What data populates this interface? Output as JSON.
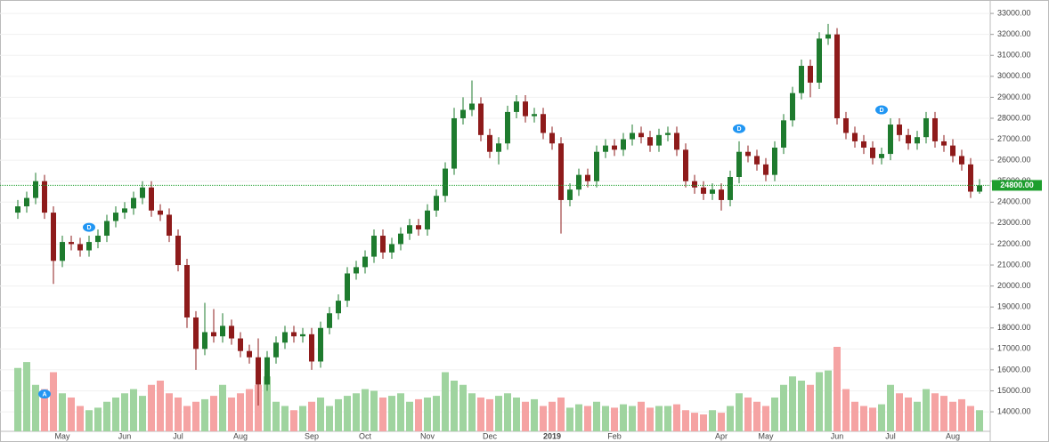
{
  "chart_data": {
    "type": "candlestick",
    "categories": [
      null,
      null,
      null,
      null,
      null,
      "May",
      null,
      null,
      null,
      null,
      null,
      null,
      "Jun",
      null,
      null,
      null,
      null,
      null,
      "Jul",
      null,
      null,
      null,
      null,
      null,
      null,
      "Aug",
      null,
      null,
      null,
      null,
      null,
      null,
      null,
      "Sep",
      null,
      null,
      null,
      null,
      null,
      "Oct",
      null,
      null,
      null,
      null,
      null,
      null,
      "Nov",
      null,
      null,
      null,
      null,
      null,
      null,
      "Dec",
      null,
      null,
      null,
      null,
      null,
      null,
      "2019",
      null,
      null,
      null,
      null,
      null,
      null,
      "Feb",
      null,
      null,
      null,
      null,
      null,
      null,
      null,
      null,
      null,
      null,
      null,
      "Apr",
      null,
      null,
      null,
      null,
      "May",
      null,
      null,
      null,
      null,
      null,
      null,
      null,
      "Jun",
      null,
      null,
      null,
      null,
      null,
      "Jul",
      null,
      null,
      null,
      null,
      null,
      null,
      "Aug",
      null,
      null,
      null
    ],
    "open": [
      23500,
      23800,
      24200,
      25000,
      23500,
      21200,
      22100,
      22000,
      21700,
      22100,
      22400,
      23100,
      23500,
      23700,
      24200,
      24700,
      23600,
      23400,
      22400,
      21000,
      18500,
      17000,
      17800,
      17600,
      18100,
      17500,
      16900,
      16600,
      15300,
      16600,
      17300,
      17800,
      17600,
      17700,
      16400,
      18000,
      18700,
      19300,
      20600,
      20900,
      21400,
      22400,
      21600,
      22000,
      22500,
      22900,
      22700,
      23600,
      24300,
      25600,
      28000,
      28400,
      28700,
      27200,
      26400,
      26800,
      28300,
      28800,
      28100,
      28200,
      27300,
      26800,
      24100,
      24600,
      25300,
      25000,
      26400,
      26700,
      26500,
      27000,
      27300,
      27100,
      26700,
      27200,
      27300,
      26500,
      25000,
      24700,
      24400,
      24600,
      24100,
      25200,
      26400,
      26200,
      25800,
      25300,
      26600,
      27900,
      29200,
      30500,
      29700,
      31800,
      32000,
      28000,
      27300,
      26900,
      26600,
      26100,
      26300,
      27700,
      27200,
      26800,
      27100,
      28000,
      26900,
      26700,
      26200,
      25800,
      24500
    ],
    "high": [
      24100,
      24500,
      25400,
      25300,
      23800,
      22400,
      22400,
      22300,
      22400,
      22700,
      23400,
      23800,
      24000,
      24500,
      25000,
      25000,
      23900,
      23700,
      22700,
      21300,
      18800,
      19200,
      18900,
      18700,
      18400,
      17800,
      17200,
      17500,
      16900,
      17600,
      18100,
      18100,
      18000,
      18000,
      18300,
      19000,
      19600,
      20900,
      21200,
      21700,
      22700,
      22700,
      22300,
      22800,
      23200,
      23200,
      23900,
      24600,
      25900,
      28500,
      29000,
      29800,
      29000,
      27500,
      27100,
      28600,
      29100,
      29100,
      28500,
      28500,
      27600,
      27100,
      24900,
      25600,
      25600,
      26700,
      27000,
      27000,
      27300,
      27700,
      27600,
      27400,
      27500,
      27600,
      27600,
      26800,
      25300,
      25000,
      24900,
      24900,
      25500,
      26900,
      26700,
      26500,
      26100,
      26900,
      28200,
      29500,
      30800,
      30800,
      32100,
      32500,
      32300,
      28300,
      27600,
      27200,
      26900,
      26600,
      28000,
      28000,
      27500,
      27400,
      28300,
      28300,
      27200,
      27000,
      26500,
      26100,
      25100
    ],
    "low": [
      23200,
      23500,
      23900,
      23200,
      20100,
      20900,
      21700,
      21400,
      21400,
      21800,
      22100,
      22800,
      23200,
      23400,
      23900,
      23300,
      23100,
      22100,
      20700,
      18000,
      16000,
      16700,
      17300,
      17300,
      17200,
      16600,
      16300,
      14300,
      15000,
      16300,
      17000,
      17300,
      17300,
      16000,
      16100,
      17700,
      18400,
      19000,
      20300,
      20600,
      21100,
      21300,
      21300,
      21700,
      22200,
      22400,
      22400,
      23300,
      24000,
      25300,
      27700,
      28100,
      26900,
      26100,
      25800,
      26500,
      28000,
      27800,
      27800,
      27000,
      26500,
      22500,
      23800,
      24300,
      24700,
      24700,
      26100,
      26200,
      26200,
      26700,
      26800,
      26400,
      26400,
      26900,
      26200,
      24700,
      24400,
      24100,
      24100,
      23600,
      23800,
      24900,
      25900,
      25500,
      25000,
      25000,
      26300,
      27600,
      28900,
      29000,
      29400,
      31500,
      27700,
      27000,
      26600,
      26300,
      25800,
      25800,
      26000,
      26900,
      26500,
      26500,
      26800,
      26600,
      26400,
      25900,
      25500,
      24200,
      24400
    ],
    "close": [
      23800,
      24200,
      25000,
      23500,
      21200,
      22100,
      22000,
      21700,
      22100,
      22400,
      23100,
      23500,
      23700,
      24200,
      24700,
      23600,
      23400,
      22400,
      21000,
      18500,
      17000,
      17800,
      17600,
      18100,
      17500,
      16900,
      16600,
      15300,
      16600,
      17300,
      17800,
      17600,
      17700,
      16400,
      18000,
      18700,
      19300,
      20600,
      20900,
      21400,
      22400,
      21600,
      22000,
      22500,
      22900,
      22700,
      23600,
      24300,
      25600,
      28000,
      28400,
      28700,
      27200,
      26400,
      26800,
      28300,
      28800,
      28100,
      28200,
      27300,
      26800,
      24100,
      24600,
      25300,
      25000,
      26400,
      26700,
      26500,
      27000,
      27300,
      27100,
      26700,
      27200,
      27300,
      26500,
      25000,
      24700,
      24400,
      24600,
      24100,
      25200,
      26400,
      26200,
      25800,
      25300,
      26600,
      27900,
      29200,
      30500,
      29700,
      31800,
      32000,
      28000,
      27300,
      26900,
      26600,
      26100,
      26300,
      27700,
      27200,
      26800,
      27100,
      28000,
      26900,
      26700,
      26200,
      25800,
      24500,
      24800
    ],
    "volume": [
      75,
      82,
      55,
      50,
      70,
      45,
      40,
      30,
      25,
      28,
      35,
      40,
      45,
      50,
      42,
      55,
      60,
      45,
      40,
      30,
      35,
      38,
      42,
      55,
      40,
      45,
      50,
      55,
      65,
      35,
      30,
      25,
      30,
      35,
      40,
      30,
      38,
      42,
      45,
      50,
      48,
      40,
      42,
      45,
      35,
      38,
      40,
      42,
      70,
      60,
      55,
      45,
      40,
      38,
      42,
      45,
      40,
      35,
      38,
      30,
      35,
      40,
      28,
      32,
      30,
      35,
      30,
      28,
      32,
      30,
      35,
      28,
      30,
      30,
      32,
      25,
      22,
      20,
      25,
      22,
      30,
      45,
      40,
      35,
      30,
      40,
      55,
      65,
      60,
      55,
      70,
      72,
      100,
      50,
      35,
      30,
      28,
      32,
      55,
      45,
      40,
      35,
      50,
      45,
      42,
      35,
      38,
      30,
      25
    ],
    "volume_lim": [
      0,
      100
    ],
    "up_color": "#1e7b2e",
    "down_color": "#8e1b1b",
    "volume_up_color": "#9fd49f",
    "volume_down_color": "#f5a3a3",
    "ylim": [
      13070,
      33640
    ],
    "yticks": [
      {
        "value": 14000,
        "label": "14000.00"
      },
      {
        "value": 15000,
        "label": "15000.00"
      },
      {
        "value": 16000,
        "label": "16000.00"
      },
      {
        "value": 17000,
        "label": "17000.00"
      },
      {
        "value": 18000,
        "label": "18000.00"
      },
      {
        "value": 19000,
        "label": "19000.00"
      },
      {
        "value": 20000,
        "label": "20000.00"
      },
      {
        "value": 21000,
        "label": "21000.00"
      },
      {
        "value": 22000,
        "label": "22000.00"
      },
      {
        "value": 23000,
        "label": "23000.00"
      },
      {
        "value": 24000,
        "label": "24000.00"
      },
      {
        "value": 25000,
        "label": "25000.00"
      },
      {
        "value": 26000,
        "label": "26000.00"
      },
      {
        "value": 27000,
        "label": "27000.00"
      },
      {
        "value": 28000,
        "label": "28000.00"
      },
      {
        "value": 29000,
        "label": "29000.00"
      },
      {
        "value": 30000,
        "label": "30000.00"
      },
      {
        "value": 31000,
        "label": "31000.00"
      },
      {
        "value": 32000,
        "label": "32000.00"
      },
      {
        "value": 33000,
        "label": "33000.00"
      }
    ],
    "last_price": {
      "value": 24800,
      "label": "24800.00"
    },
    "events": [
      {
        "label": "A",
        "index": 3,
        "price": 14850
      },
      {
        "label": "D",
        "index": 8,
        "price": 22800
      },
      {
        "label": "D",
        "index": 81,
        "price": 27500
      },
      {
        "label": "D",
        "index": 97,
        "price": 28400
      }
    ]
  }
}
